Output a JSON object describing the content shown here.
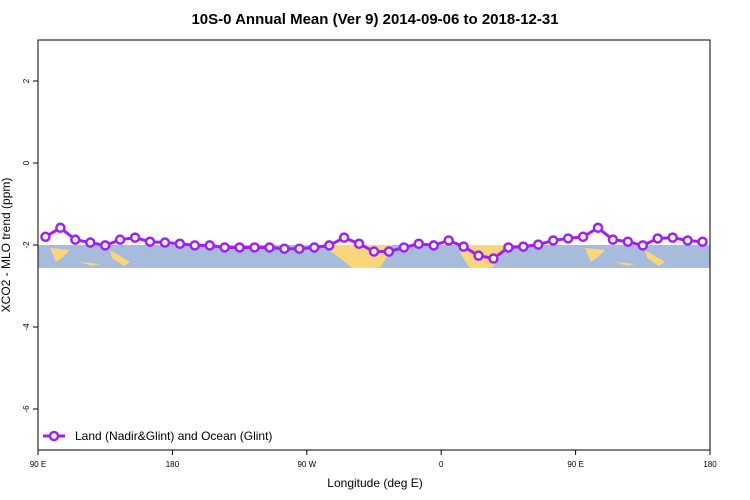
{
  "chart_data": {
    "type": "line",
    "title": "10S-0 Annual Mean (Ver 9)   2014-09-06 to 2018-12-31",
    "x_label": "Longitude (deg E)",
    "y_label": "XCO2 - MLO trend (ppm)",
    "xlim": [
      90,
      540
    ],
    "xticks": [
      {
        "value": 90,
        "label": "90 E"
      },
      {
        "value": 180,
        "label": "180"
      },
      {
        "value": 270,
        "label": "90 W"
      },
      {
        "value": 360,
        "label": "0"
      },
      {
        "value": 450,
        "label": "90 E"
      },
      {
        "value": 540,
        "label": "180"
      }
    ],
    "ylim": [
      -7,
      3
    ],
    "yticks": [
      -6,
      -4,
      -2,
      0,
      2
    ],
    "legend": "bottom-left",
    "x": [
      95,
      105,
      115,
      125,
      135,
      145,
      155,
      165,
      175,
      185,
      195,
      205,
      215,
      225,
      235,
      245,
      255,
      265,
      275,
      285,
      295,
      305,
      315,
      325,
      335,
      345,
      355,
      365,
      375,
      385,
      395,
      405,
      415,
      425,
      435,
      445,
      455,
      465,
      475,
      485,
      495,
      505,
      515,
      525,
      535
    ],
    "series": [
      {
        "name": "Land (Nadir&Glint) and Ocean (Glint)",
        "color": "#a020f0",
        "values": [
          -1.8,
          -1.58,
          -1.87,
          -1.94,
          -2.01,
          -1.87,
          -1.82,
          -1.92,
          -1.94,
          -1.97,
          -2.01,
          -2.01,
          -2.06,
          -2.06,
          -2.06,
          -2.06,
          -2.09,
          -2.09,
          -2.06,
          -2.01,
          -1.82,
          -1.97,
          -2.16,
          -2.16,
          -2.06,
          -1.97,
          -2.01,
          -1.89,
          -2.04,
          -2.26,
          -2.33,
          -2.06,
          -2.04,
          -1.99,
          -1.89,
          -1.84,
          -1.8,
          -1.58,
          -1.87,
          -1.92,
          -2.01,
          -1.84,
          -1.82,
          -1.89,
          -1.92
        ]
      }
    ]
  }
}
